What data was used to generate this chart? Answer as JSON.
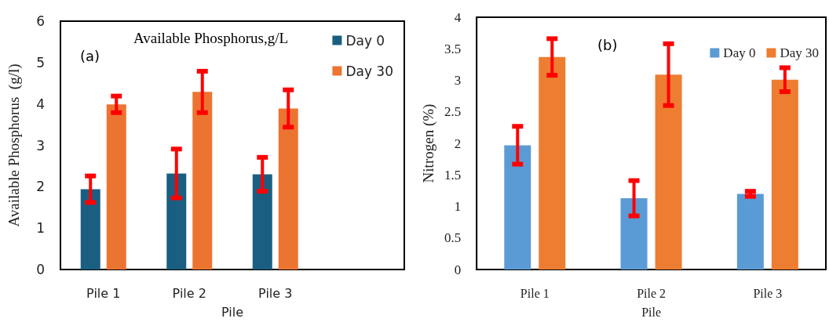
{
  "chart_data": [
    {
      "type": "bar",
      "title": "Available Phosphorus,g/L",
      "xlabel": "Pile",
      "ylabel": "Available Phosphorus  (g/l)",
      "annotations": [
        "(a)"
      ],
      "categories": [
        "Pile 1",
        "Pile 2",
        "Pile 3",
        null
      ],
      "series": [
        {
          "name": "Day 0",
          "color": "#1a5f82",
          "values": [
            1.94,
            2.32,
            2.3,
            null
          ],
          "errors": [
            0.32,
            0.59,
            0.41,
            null
          ]
        },
        {
          "name": "Day 30",
          "color": "#ec7431",
          "values": [
            3.99,
            4.29,
            3.89,
            null
          ],
          "errors": [
            0.2,
            0.5,
            0.45,
            null
          ]
        }
      ],
      "ylim": [
        0,
        6
      ],
      "yticks": [
        0,
        1,
        2,
        3,
        4,
        5,
        6
      ],
      "grid": false,
      "legend": "top right"
    },
    {
      "type": "bar",
      "xlabel": "Pile",
      "ylabel": "Nitrogen (%)",
      "annotations": [
        "(b)"
      ],
      "categories": [
        "Pile 1",
        "Pile 2",
        "Pile 3"
      ],
      "series": [
        {
          "name": "Day 0",
          "color": "#5b9bd5",
          "values": [
            1.97,
            1.13,
            1.2
          ],
          "errors": [
            0.3,
            0.28,
            0.04
          ]
        },
        {
          "name": "Day 30",
          "color": "#ed7d31",
          "values": [
            3.37,
            3.09,
            3.01
          ],
          "errors": [
            0.29,
            0.49,
            0.19
          ]
        }
      ],
      "ylim": [
        0,
        4
      ],
      "yticks": [
        0,
        0.5,
        1,
        1.5,
        2,
        2.5,
        3,
        3.5,
        4
      ],
      "grid": false,
      "legend": "top right"
    }
  ]
}
